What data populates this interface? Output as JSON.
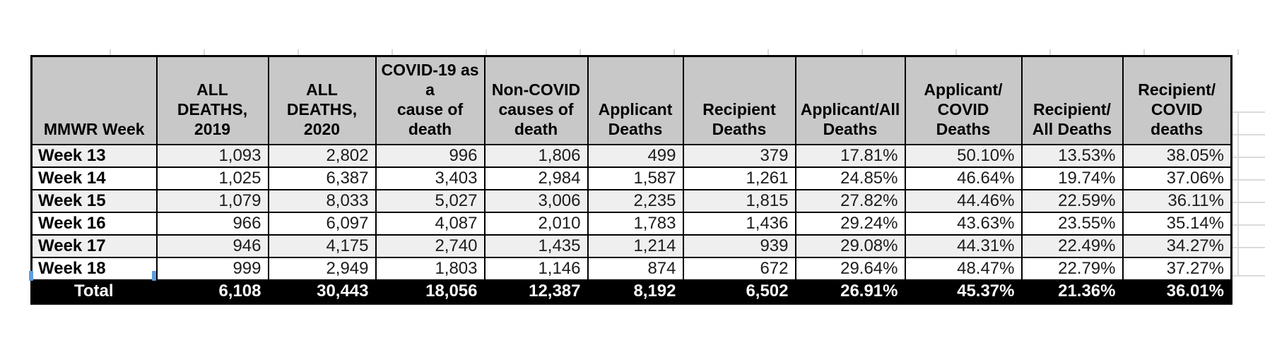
{
  "colors": {
    "header_bg": "#c8c8c8",
    "stripe_bg": "#efefef",
    "total_bg": "#000000",
    "total_text": "#ffffff",
    "selection_handle": "#5d9de0",
    "gridline": "#dadada"
  },
  "table": {
    "header": [
      "MMWR Week",
      "ALL DEATHS,\n2019",
      "ALL DEATHS,\n2020",
      "COVID-19 as a\ncause of death",
      "Non-COVID\ncauses of\ndeath",
      "Applicant\nDeaths",
      "Recipient\nDeaths",
      "Applicant/All\nDeaths",
      "Applicant/\nCOVID Deaths",
      "Recipient/\nAll Deaths",
      "Recipient/\nCOVID deaths"
    ],
    "rows": [
      {
        "week": "Week 13",
        "values": [
          "1,093",
          "2,802",
          "996",
          "1,806",
          "499",
          "379",
          "17.81%",
          "50.10%",
          "13.53%",
          "38.05%"
        ]
      },
      {
        "week": "Week 14",
        "values": [
          "1,025",
          "6,387",
          "3,403",
          "2,984",
          "1,587",
          "1,261",
          "24.85%",
          "46.64%",
          "19.74%",
          "37.06%"
        ]
      },
      {
        "week": "Week 15",
        "values": [
          "1,079",
          "8,033",
          "5,027",
          "3,006",
          "2,235",
          "1,815",
          "27.82%",
          "44.46%",
          "22.59%",
          "36.11%"
        ]
      },
      {
        "week": "Week 16",
        "values": [
          "966",
          "6,097",
          "4,087",
          "2,010",
          "1,783",
          "1,436",
          "29.24%",
          "43.63%",
          "23.55%",
          "35.14%"
        ]
      },
      {
        "week": "Week 17",
        "values": [
          "946",
          "4,175",
          "2,740",
          "1,435",
          "1,214",
          "939",
          "29.08%",
          "44.31%",
          "22.49%",
          "34.27%"
        ]
      },
      {
        "week": "Week 18",
        "values": [
          "999",
          "2,949",
          "1,803",
          "1,146",
          "874",
          "672",
          "29.64%",
          "48.47%",
          "22.79%",
          "37.27%"
        ]
      }
    ],
    "total": {
      "label": "Total",
      "values": [
        "6,108",
        "30,443",
        "18,056",
        "12,387",
        "8,192",
        "6,502",
        "26.91%",
        "45.37%",
        "21.36%",
        "36.01%"
      ]
    }
  }
}
